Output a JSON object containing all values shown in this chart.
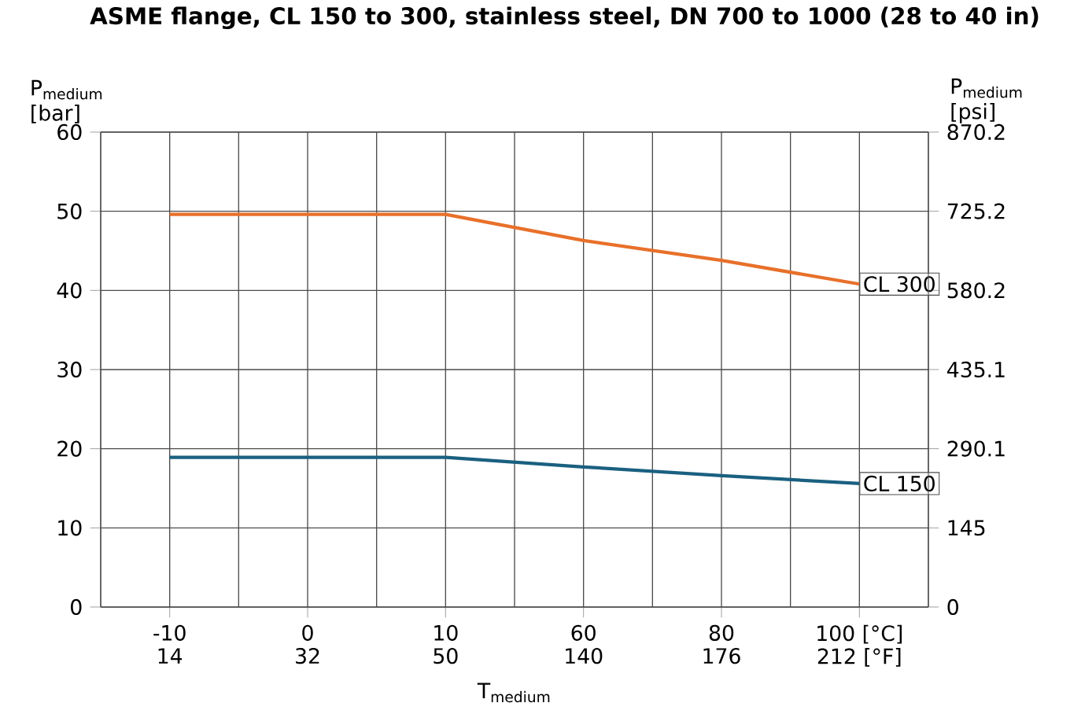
{
  "chart_data": {
    "type": "line",
    "title": "ASME flange, CL 150 to 300, stainless steel, DN 700 to 1000 (28 to 40 in)",
    "xlabel": "T$_{medium}$",
    "ylabel": "P$_{medium}$ [bar]",
    "y2label": "P$_{medium}$ [psi]",
    "categories": [
      "-10",
      "0",
      "10",
      "60",
      "80",
      "100 [°C]"
    ],
    "annotations": [
      "14",
      "32",
      "50",
      "140",
      "176",
      "212 [°F]"
    ],
    "series": [
      {
        "name": "CL 300",
        "color": "#e8702a",
        "values": [
          49.6,
          49.6,
          49.6,
          46.3,
          43.8,
          40.8
        ]
      },
      {
        "name": "CL 150",
        "color": "#1a6080",
        "values": [
          18.9,
          18.9,
          18.9,
          17.7,
          16.6,
          15.6
        ]
      }
    ],
    "ylim": [
      0,
      60
    ],
    "yticks": [
      0,
      10,
      20,
      30,
      40,
      50,
      60
    ],
    "y2lim": [
      0,
      870.2
    ],
    "y2ticks": [
      0,
      145,
      290.1,
      435.1,
      580.2,
      725.2,
      870.2
    ],
    "grid": true
  }
}
